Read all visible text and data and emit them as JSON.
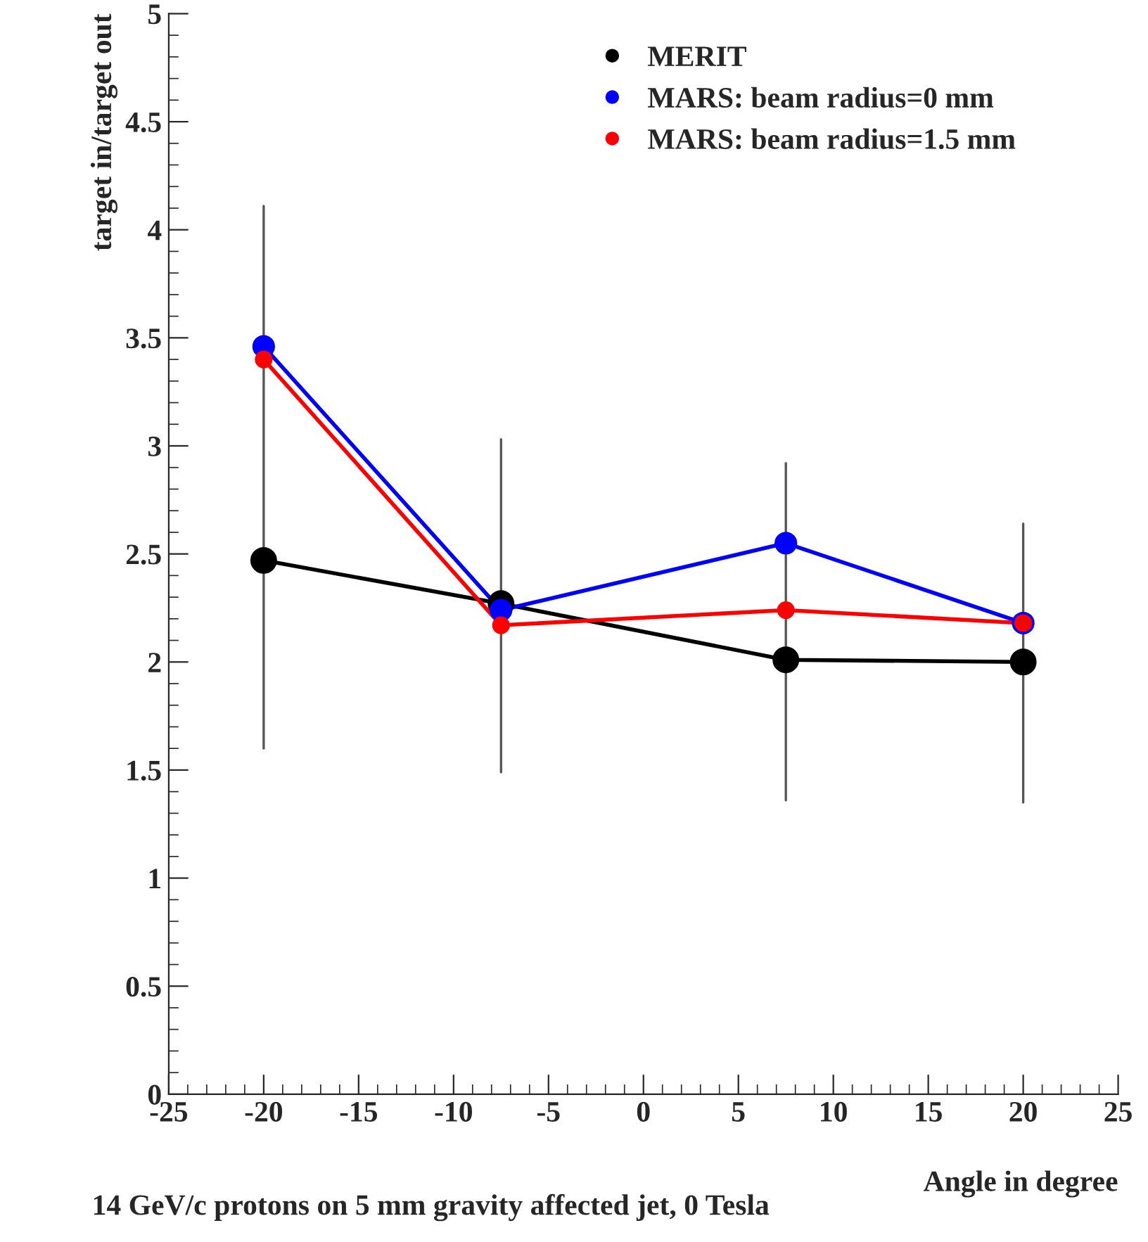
{
  "chart_data": {
    "type": "line",
    "xlabel": "Angle in degree",
    "ylabel": "target in/target out",
    "annotations": [
      "14 GeV/c protons on 5 mm gravity affected jet, 0 Tesla"
    ],
    "x": [
      -20,
      -7.5,
      7.5,
      20
    ],
    "series": [
      {
        "name": "MERIT",
        "color": "#000000",
        "values": [
          2.47,
          2.27,
          2.01,
          2.0
        ],
        "errors": [
          [
            1.6,
            4.11
          ],
          [
            1.49,
            3.03
          ],
          [
            1.36,
            2.92
          ],
          [
            1.35,
            2.64
          ]
        ]
      },
      {
        "name": "MARS: beam radius=0 mm",
        "color": "#0000ff",
        "values": [
          3.46,
          2.24,
          2.55,
          2.18
        ]
      },
      {
        "name": "MARS: beam radius=1.5 mm",
        "color": "#ff0000",
        "values": [
          3.4,
          2.17,
          2.24,
          2.18
        ]
      }
    ],
    "xlim": [
      -25,
      25
    ],
    "xticks": [
      -25,
      -20,
      -15,
      -10,
      -5,
      0,
      5,
      10,
      15,
      20,
      25
    ],
    "ylim": [
      0,
      5
    ],
    "yticks": [
      0,
      0.5,
      1,
      1.5,
      2,
      2.5,
      3,
      3.5,
      4,
      4.5,
      5
    ],
    "grid": false,
    "legend": "top right",
    "marker": "circle",
    "line_style": "solid"
  }
}
